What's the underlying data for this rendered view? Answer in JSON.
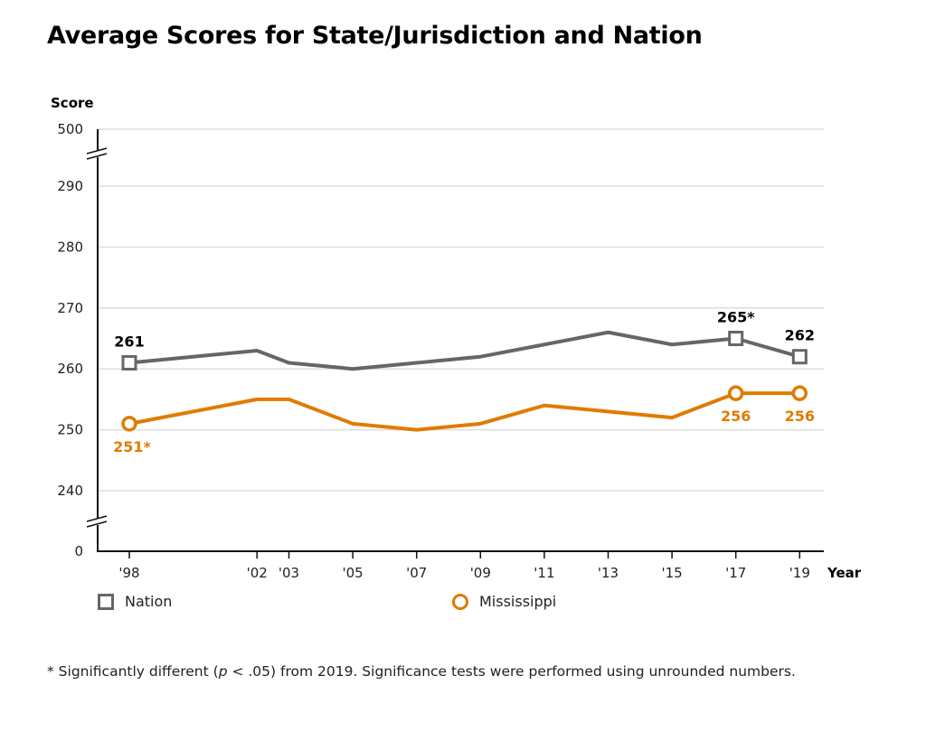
{
  "chart_data": {
    "type": "line",
    "title": "Average Scores for State/Jurisdiction and Nation",
    "xlabel": "Year",
    "ylabel": "Score",
    "x": [
      1998,
      2002,
      2003,
      2005,
      2007,
      2009,
      2011,
      2013,
      2015,
      2017,
      2019
    ],
    "x_tick_labels": [
      "'98",
      "'02",
      "'03",
      "'05",
      "'07",
      "'09",
      "'11",
      "'13",
      "'15",
      "'17",
      "'19"
    ],
    "y_tick_labels": [
      "500",
      "290",
      "280",
      "270",
      "260",
      "250",
      "240",
      "0"
    ],
    "y_ticks": [
      500,
      290,
      280,
      270,
      260,
      250,
      240,
      0
    ],
    "ylim": [
      0,
      500
    ],
    "y_axis_break": [
      [
        240,
        0
      ],
      [
        290,
        500
      ]
    ],
    "grid": true,
    "series": [
      {
        "name": "Nation",
        "color": "#666666",
        "marker": "square",
        "values": [
          261,
          263,
          261,
          260,
          261,
          262,
          264,
          266,
          264,
          265,
          262
        ],
        "labeled_points": [
          {
            "index": 0,
            "label": "261"
          },
          {
            "index": 9,
            "label": "265*"
          },
          {
            "index": 10,
            "label": "262"
          }
        ]
      },
      {
        "name": "Mississippi",
        "color": "#e07b00",
        "marker": "circle",
        "values": [
          251,
          255,
          255,
          251,
          250,
          251,
          254,
          253,
          252,
          256,
          256
        ],
        "labeled_points": [
          {
            "index": 0,
            "label": "251*"
          },
          {
            "index": 9,
            "label": "256"
          },
          {
            "index": 10,
            "label": "256"
          }
        ]
      }
    ],
    "legend": [
      "Nation",
      "Mississippi"
    ],
    "legend_position": "bottom"
  },
  "footnote": {
    "prefix": "* Significantly different (",
    "p": "p",
    "middle": " < .05) from 2019. Significance tests were performed using unrounded numbers."
  }
}
